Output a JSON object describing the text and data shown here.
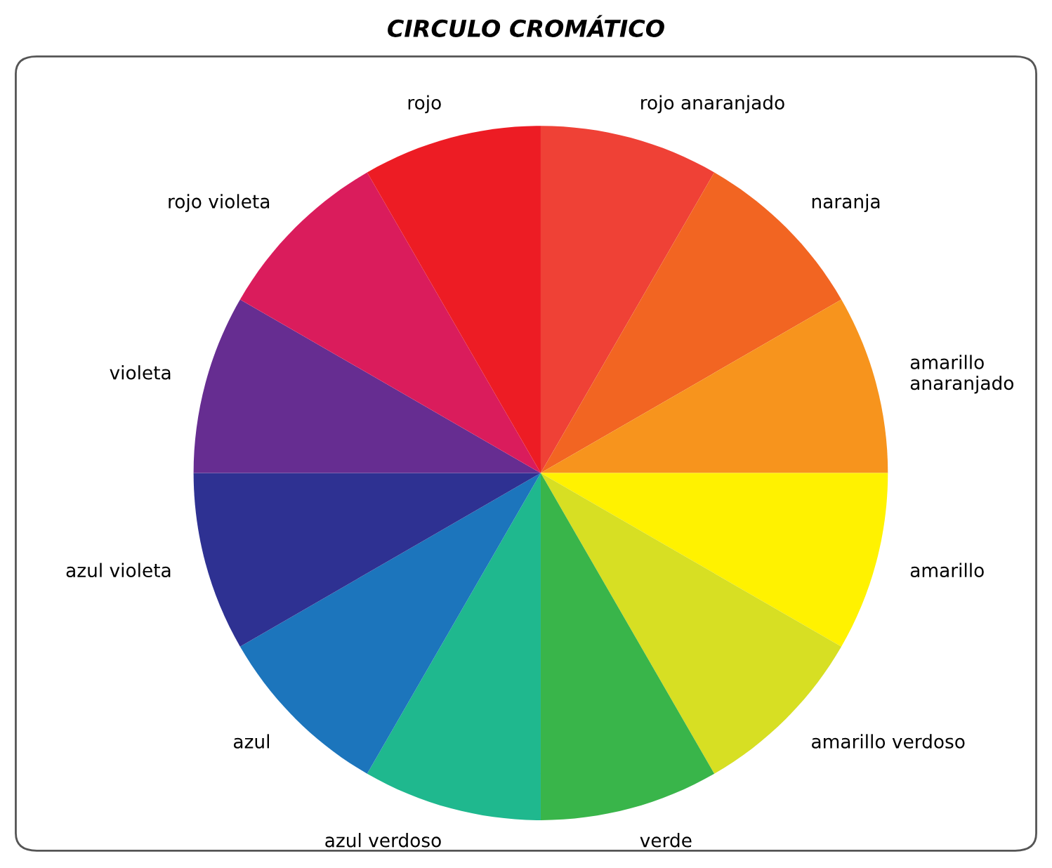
{
  "chart_data": {
    "type": "pie",
    "title": "CIRCULO CROMÁTICO",
    "categories": [
      "rojo anaranjado",
      "naranja",
      "amarillo\nanaranjado",
      "amarillo",
      "amarillo verdoso",
      "verde",
      "azul verdoso",
      "azul",
      "azul violeta",
      "violeta",
      "rojo violeta",
      "rojo"
    ],
    "values": [
      8.33,
      8.33,
      8.33,
      8.33,
      8.33,
      8.33,
      8.33,
      8.33,
      8.33,
      8.33,
      8.33,
      8.33
    ],
    "colors": [
      "#ef4136",
      "#f26522",
      "#f7941d",
      "#fff200",
      "#d7df23",
      "#39b54a",
      "#1fb88e",
      "#1c75bc",
      "#2e3192",
      "#662d91",
      "#da1c5c",
      "#ed1c24"
    ]
  }
}
